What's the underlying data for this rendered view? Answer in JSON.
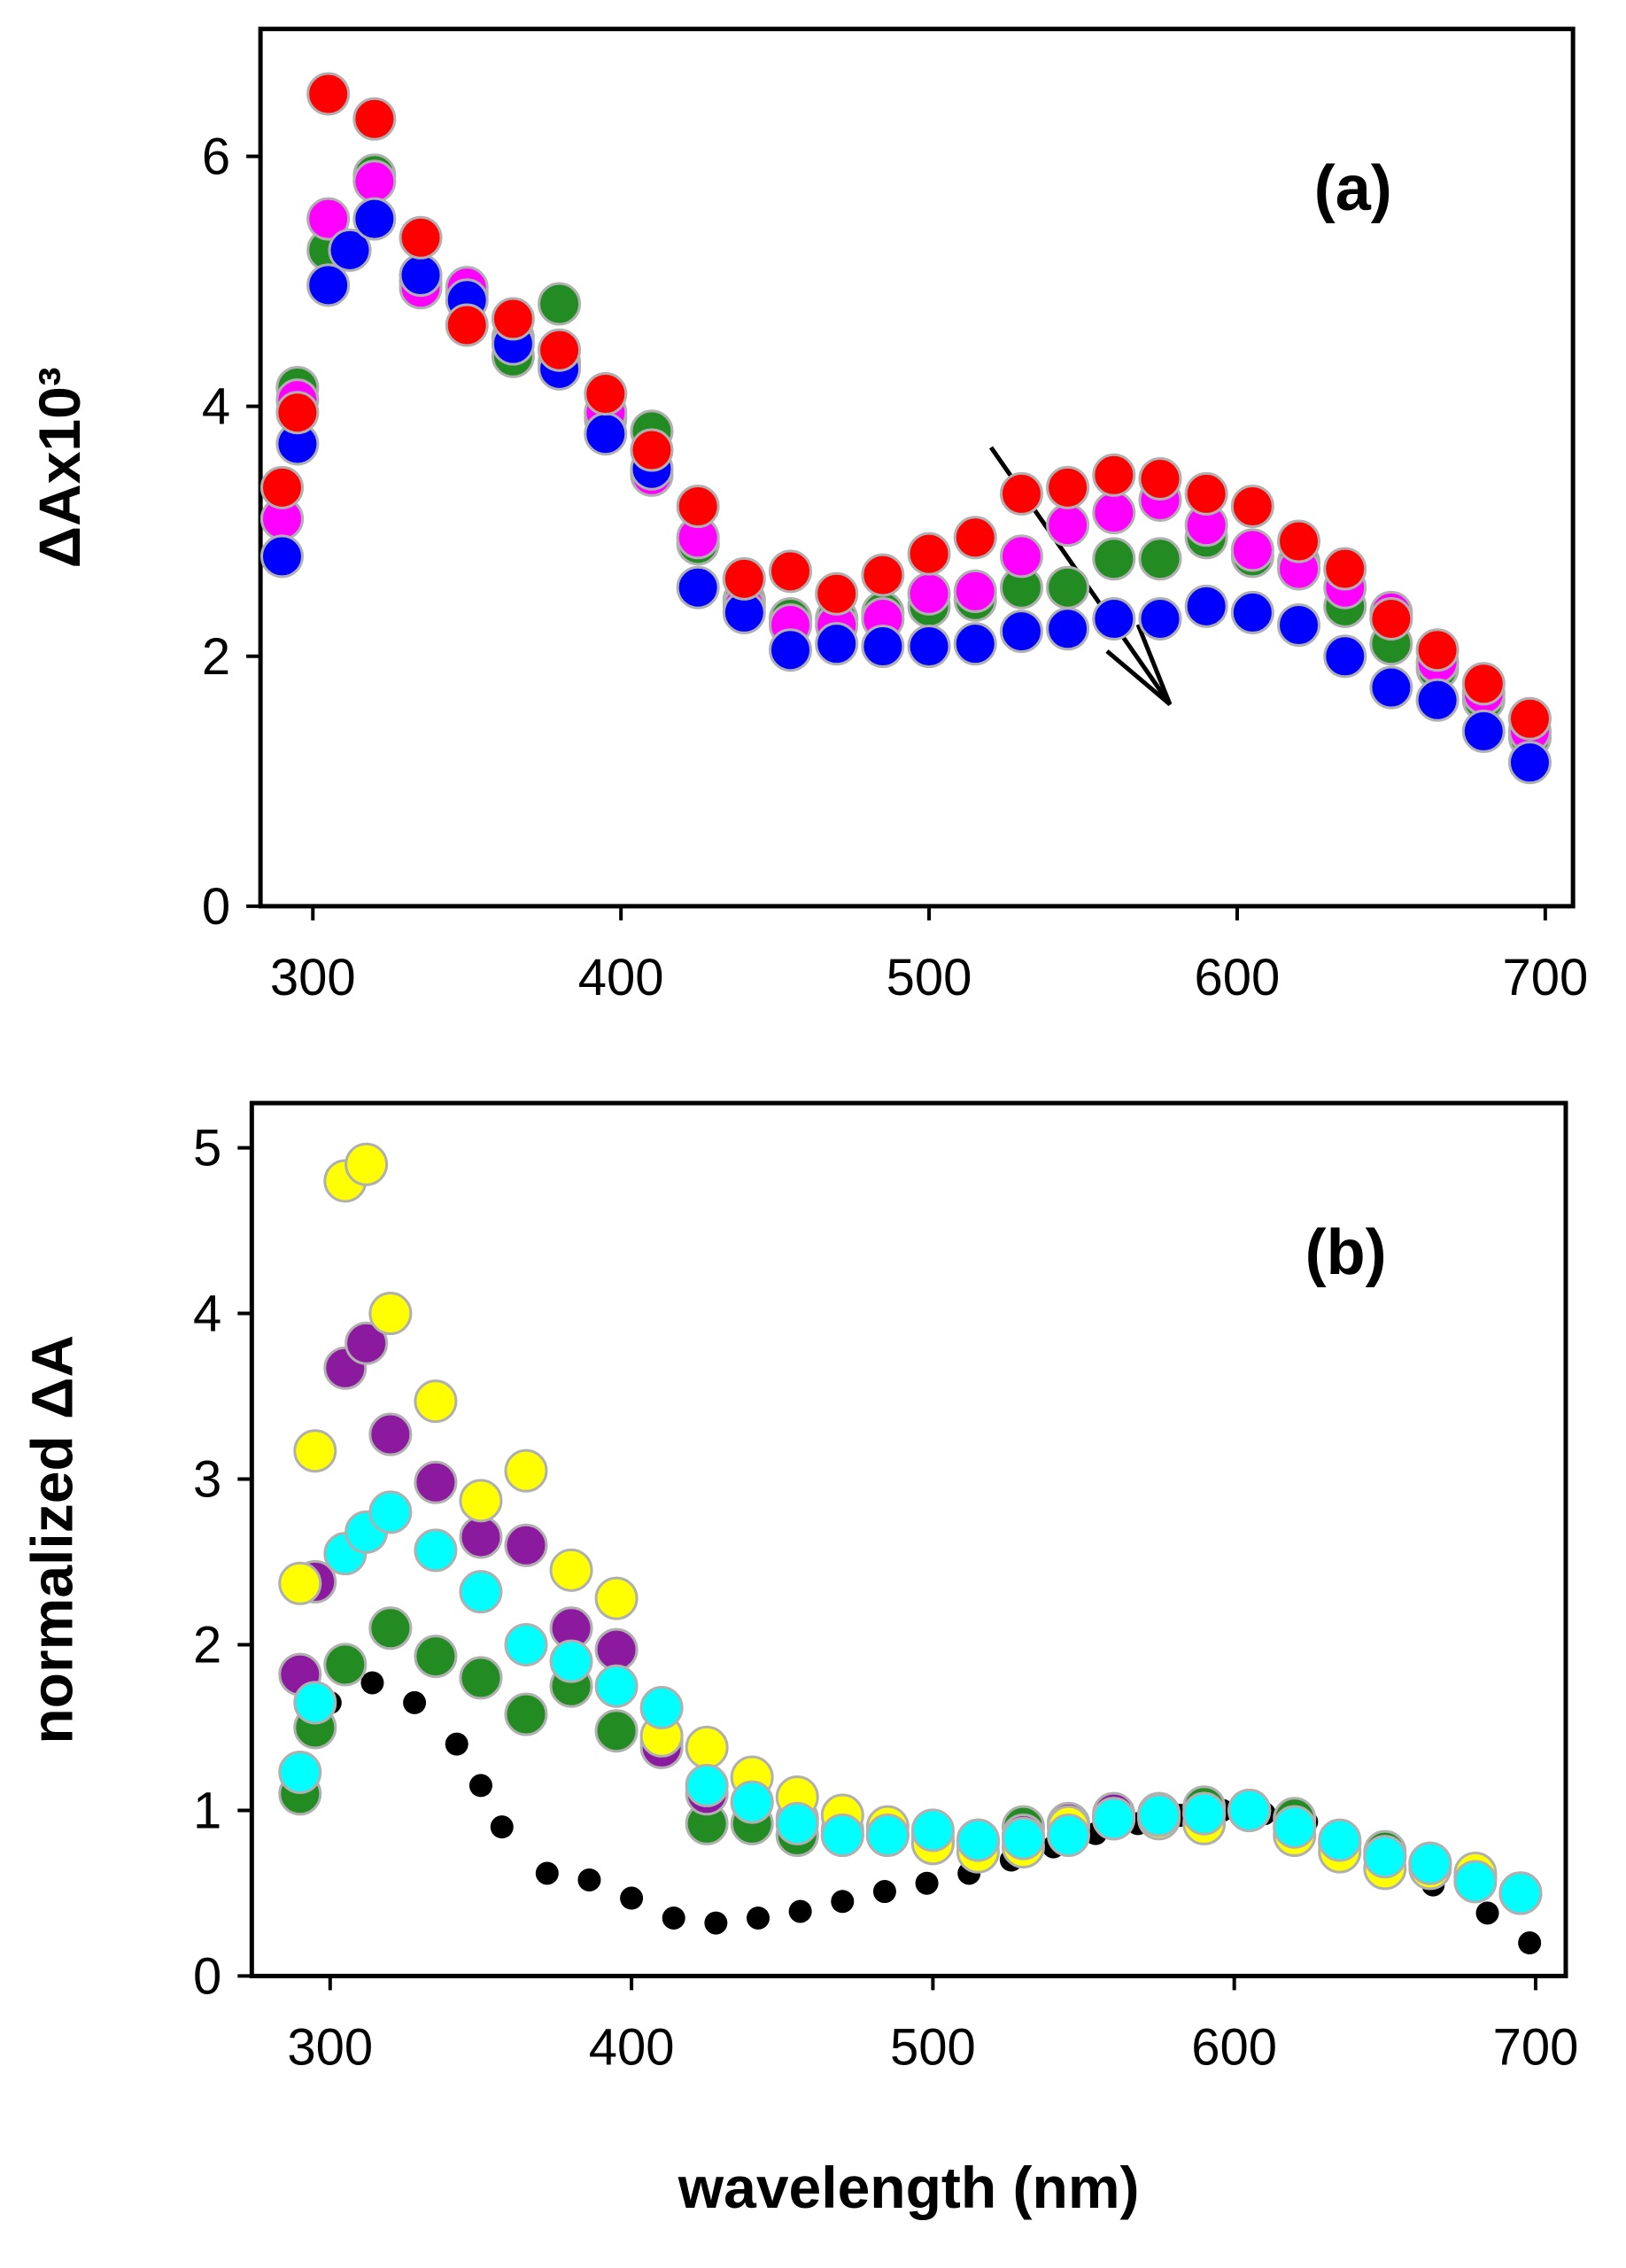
{
  "chart_data": [
    {
      "type": "scatter",
      "ylabel": "ΔAx10³",
      "annotation": "(a)",
      "xlim": [
        283,
        709
      ],
      "ylim": [
        0,
        7.02
      ],
      "xticks": [
        300,
        400,
        500,
        600,
        700
      ],
      "yticks": [
        0,
        2,
        4,
        6
      ],
      "series": [
        {
          "color": "#228b22",
          "edgecolor": "#b0b0b0",
          "x": [
            290,
            295,
            305,
            320,
            335,
            350,
            365,
            380,
            395,
            410,
            425,
            440,
            455,
            470,
            485,
            500,
            515,
            530,
            545,
            560,
            575,
            590,
            605,
            620,
            635,
            650,
            665,
            680,
            695
          ],
          "values": [
            3.1,
            4.15,
            5.25,
            5.85,
            5.0,
            4.9,
            4.4,
            4.82,
            3.9,
            3.8,
            2.9,
            2.45,
            2.3,
            2.3,
            2.35,
            2.4,
            2.45,
            2.55,
            2.55,
            2.78,
            2.78,
            2.95,
            2.8,
            2.75,
            2.4,
            2.1,
            1.9,
            1.65,
            1.35
          ]
        },
        {
          "color": "#ff00ff",
          "edgecolor": "#b0b0b0",
          "x": [
            290,
            295,
            305,
            320,
            335,
            350,
            365,
            380,
            395,
            410,
            425,
            440,
            455,
            470,
            485,
            500,
            515,
            530,
            545,
            560,
            575,
            590,
            605,
            620,
            635,
            650,
            665,
            680,
            695
          ],
          "values": [
            3.1,
            4.05,
            5.5,
            5.8,
            4.95,
            4.95,
            4.55,
            4.35,
            3.95,
            3.45,
            2.95,
            2.4,
            2.25,
            2.25,
            2.3,
            2.5,
            2.52,
            2.8,
            3.05,
            3.15,
            3.25,
            3.05,
            2.85,
            2.7,
            2.55,
            2.35,
            1.95,
            1.7,
            1.4
          ]
        },
        {
          "color": "#0000ff",
          "edgecolor": "#b0b0b0",
          "x": [
            290,
            295,
            305,
            312,
            320,
            335,
            350,
            365,
            380,
            395,
            410,
            425,
            440,
            455,
            470,
            485,
            500,
            515,
            530,
            545,
            560,
            575,
            590,
            605,
            620,
            635,
            650,
            665,
            680,
            695
          ],
          "values": [
            2.8,
            3.7,
            4.97,
            5.25,
            5.5,
            5.05,
            4.85,
            4.5,
            4.3,
            3.78,
            3.5,
            2.55,
            2.35,
            2.05,
            2.1,
            2.08,
            2.08,
            2.1,
            2.2,
            2.22,
            2.3,
            2.3,
            2.4,
            2.35,
            2.25,
            2.0,
            1.75,
            1.65,
            1.4,
            1.15
          ]
        },
        {
          "color": "#ff0000",
          "edgecolor": "#b0b0b0",
          "x": [
            290,
            295,
            305,
            320,
            335,
            350,
            365,
            380,
            395,
            410,
            425,
            440,
            455,
            470,
            485,
            500,
            515,
            530,
            545,
            560,
            575,
            590,
            605,
            620,
            635,
            650,
            665,
            680,
            695
          ],
          "values": [
            3.35,
            3.95,
            6.5,
            6.3,
            5.35,
            4.65,
            4.7,
            4.45,
            4.1,
            3.65,
            3.2,
            2.62,
            2.68,
            2.5,
            2.65,
            2.82,
            2.95,
            3.3,
            3.35,
            3.45,
            3.42,
            3.3,
            3.2,
            2.92,
            2.7,
            2.3,
            2.05,
            1.78,
            1.5
          ]
        }
      ]
    },
    {
      "type": "scatter",
      "ylabel": "normalized ΔA",
      "xlabel": "wavelength (nm)",
      "annotation": "(b)",
      "xlim": [
        274,
        710
      ],
      "ylim": [
        0,
        5.27
      ],
      "xticks": [
        300,
        400,
        500,
        600,
        700
      ],
      "yticks": [
        0,
        1,
        2,
        3,
        4,
        5
      ],
      "series": [
        {
          "color": "#000000",
          "edgecolor": "none",
          "x": [
            300,
            314,
            328,
            342,
            350,
            357,
            372,
            386,
            400,
            414,
            428,
            442,
            456,
            470,
            484,
            498,
            512,
            526,
            540,
            554,
            568,
            582,
            596,
            610,
            624,
            638,
            652,
            666,
            684,
            698
          ],
          "values": [
            1.65,
            1.77,
            1.65,
            1.4,
            1.15,
            0.9,
            0.62,
            0.58,
            0.47,
            0.35,
            0.32,
            0.35,
            0.39,
            0.45,
            0.51,
            0.56,
            0.62,
            0.7,
            0.78,
            0.86,
            0.92,
            0.97,
            1.0,
            0.98,
            0.93,
            0.83,
            0.72,
            0.55,
            0.38,
            0.2
          ]
        },
        {
          "color": "#228b22",
          "edgecolor": "#b0b0b0",
          "x": [
            290,
            295,
            305,
            320,
            335,
            350,
            365,
            380,
            395,
            410,
            425,
            440,
            455,
            470,
            485,
            500,
            515,
            530,
            545,
            560,
            575,
            590,
            605,
            620,
            635,
            650,
            665,
            680,
            695
          ],
          "values": [
            1.1,
            1.5,
            1.88,
            2.1,
            1.93,
            1.8,
            1.58,
            1.75,
            1.48,
            1.42,
            0.92,
            0.92,
            0.85,
            0.85,
            0.85,
            0.82,
            0.8,
            0.9,
            0.92,
            0.95,
            0.97,
            1.02,
            1.0,
            0.95,
            0.8,
            0.75,
            0.68,
            0.6,
            0.5
          ]
        },
        {
          "color": "#8b1a9e",
          "edgecolor": "#b0b0b0",
          "x": [
            290,
            295,
            305,
            312,
            320,
            335,
            350,
            365,
            380,
            395,
            410,
            425,
            440,
            455,
            470,
            485,
            500,
            515,
            530,
            545,
            560,
            575,
            590,
            605,
            620,
            635,
            650,
            665,
            680,
            695
          ],
          "values": [
            1.82,
            2.38,
            3.67,
            3.82,
            3.27,
            2.98,
            2.65,
            2.6,
            2.1,
            1.97,
            1.38,
            1.1,
            1.05,
            0.95,
            0.88,
            0.85,
            0.85,
            0.82,
            0.85,
            0.92,
            0.98,
            0.98,
            0.98,
            1.0,
            0.9,
            0.8,
            0.72,
            0.68,
            0.6,
            0.5
          ]
        },
        {
          "color": "#ffff00",
          "edgecolor": "#b0b0b0",
          "x": [
            290,
            295,
            305,
            312,
            320,
            335,
            350,
            365,
            380,
            395,
            410,
            425,
            440,
            455,
            470,
            485,
            500,
            515,
            530,
            545,
            560,
            575,
            590,
            605,
            620,
            635,
            650,
            665,
            680,
            695
          ],
          "values": [
            2.37,
            3.17,
            4.8,
            4.9,
            4.0,
            3.47,
            2.87,
            3.05,
            2.45,
            2.28,
            1.45,
            1.38,
            1.2,
            1.08,
            0.97,
            0.9,
            0.8,
            0.75,
            0.78,
            0.9,
            0.95,
            0.95,
            0.92,
            1.0,
            0.85,
            0.75,
            0.65,
            0.65,
            0.62,
            0.5
          ]
        },
        {
          "color": "#00ffff",
          "edgecolor": "#b0b0b0",
          "x": [
            290,
            295,
            305,
            312,
            320,
            335,
            350,
            365,
            380,
            395,
            410,
            425,
            440,
            455,
            470,
            485,
            500,
            515,
            530,
            545,
            560,
            575,
            590,
            605,
            620,
            635,
            650,
            665,
            680,
            695
          ],
          "values": [
            1.23,
            1.65,
            2.55,
            2.68,
            2.8,
            2.57,
            2.32,
            2.0,
            1.9,
            1.75,
            1.62,
            1.15,
            1.05,
            0.92,
            0.85,
            0.85,
            0.88,
            0.82,
            0.83,
            0.85,
            0.95,
            0.97,
            0.98,
            1.0,
            0.9,
            0.82,
            0.72,
            0.68,
            0.57,
            0.5
          ]
        }
      ]
    }
  ]
}
